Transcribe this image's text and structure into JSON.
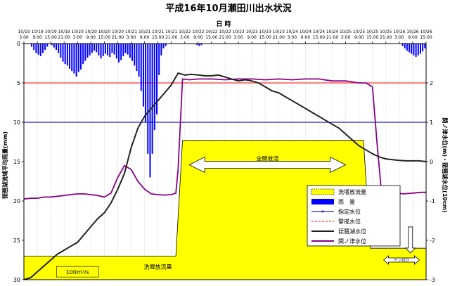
{
  "chart_data": {
    "type": "line",
    "title": "平成16年10月瀬田川出水状況",
    "xlabel": "日 時",
    "ylabel_left": "琵琶湖流域平均雨量(mm)",
    "ylabel_right": "関ノ津水位(m)・琵琶湖水位(10cm)",
    "x_tick_labels": [
      [
        "10/19",
        "3:00"
      ],
      [
        "10/19",
        "9:00"
      ],
      [
        "10/19",
        "15:00"
      ],
      [
        "10/19",
        "21:00"
      ],
      [
        "10/20",
        "3:00"
      ],
      [
        "10/20",
        "9:00"
      ],
      [
        "10/20",
        "15:00"
      ],
      [
        "10/20",
        "21:00"
      ],
      [
        "10/21",
        "3:00"
      ],
      [
        "10/21",
        "9:00"
      ],
      [
        "10/21",
        "15:00"
      ],
      [
        "10/21",
        "21:00"
      ],
      [
        "10/22",
        "3:00"
      ],
      [
        "10/22",
        "9:00"
      ],
      [
        "10/22",
        "15:00"
      ],
      [
        "10/22",
        "21:00"
      ],
      [
        "10/23",
        "3:00"
      ],
      [
        "10/23",
        "9:00"
      ],
      [
        "10/23",
        "15:00"
      ],
      [
        "10/23",
        "21:00"
      ],
      [
        "10/24",
        "3:00"
      ],
      [
        "10/24",
        "9:00"
      ],
      [
        "10/24",
        "15:00"
      ],
      [
        "10/24",
        "21:00"
      ],
      [
        "10/25",
        "3:00"
      ],
      [
        "10/25",
        "9:00"
      ],
      [
        "10/25",
        "15:00"
      ],
      [
        "10/25",
        "21:00"
      ],
      [
        "10/26",
        "3:00"
      ],
      [
        "10/26",
        "9:00"
      ],
      [
        "10/26",
        "15:00"
      ]
    ],
    "x_range_hours": [
      0,
      180
    ],
    "ylim_left": [
      30,
      0
    ],
    "left_ticks": [
      0,
      5,
      10,
      15,
      20,
      25,
      30
    ],
    "ylim_right": [
      -3,
      3
    ],
    "right_ticks": [
      2,
      1,
      0,
      -1,
      -2,
      -3
    ],
    "legend": {
      "position": "bottom-right",
      "entries": [
        "洗堰放流量",
        "雨　量",
        "指定水位",
        "警戒水位",
        "琵琶湖水位",
        "関ノ津水位"
      ]
    },
    "annotations": {
      "full_open": "全開放流",
      "discharge": "洗堰放流量",
      "base_flow": "100m³/s",
      "don_tsuke": "ドン付け"
    },
    "colors": {
      "discharge_fill": "#ffff00",
      "rain": "#0000ff",
      "designated_level": "#2020c0",
      "warning_level": "#ff3333",
      "biwa_level": "#222222",
      "sekinotsu_level": "#880088"
    },
    "series": [
      {
        "name": "雨　量",
        "unit": "mm",
        "x_hours": [
          0,
          1,
          2,
          3,
          4,
          5,
          6,
          7,
          8,
          9,
          10,
          11,
          12,
          13,
          14,
          15,
          16,
          17,
          18,
          19,
          20,
          21,
          22,
          23,
          24,
          25,
          26,
          27,
          28,
          29,
          30,
          31,
          32,
          33,
          34,
          35,
          36,
          37,
          38,
          39,
          40,
          41,
          42,
          43,
          44,
          45,
          46,
          47,
          48,
          49,
          50,
          51,
          52,
          53,
          54,
          55,
          56,
          57,
          58,
          59,
          60,
          61,
          62,
          63,
          64,
          65,
          66,
          67,
          68,
          69,
          70,
          71,
          72,
          73,
          74,
          75,
          76,
          77,
          78,
          79,
          80,
          81,
          82,
          83,
          84,
          85,
          86,
          87,
          88,
          89,
          90,
          91,
          92,
          93,
          94,
          95,
          96,
          97,
          98,
          99,
          100,
          101,
          102,
          103,
          104,
          105,
          106,
          107,
          108,
          109,
          110,
          111,
          112,
          113,
          114,
          115,
          116,
          117,
          118,
          119,
          120,
          121,
          122,
          123,
          124,
          125,
          126,
          127,
          128,
          129,
          130,
          131,
          132,
          133,
          134,
          135,
          136,
          137,
          138,
          139,
          140,
          141,
          142,
          143,
          144,
          145,
          146,
          147,
          148,
          149,
          150,
          151,
          152,
          153,
          154,
          155,
          156,
          157,
          158,
          159,
          160,
          161,
          162,
          163,
          164,
          165,
          166,
          167,
          168,
          169,
          170,
          171,
          172,
          173,
          174,
          175,
          176,
          177,
          178,
          179
        ],
        "values": [
          0,
          0,
          0,
          0.4,
          0.8,
          1.2,
          1.4,
          1.6,
          1.2,
          0.8,
          0.4,
          0,
          0.2,
          0.5,
          0.8,
          1.2,
          1.8,
          2.3,
          2.6,
          2.8,
          3.2,
          3.5,
          3.8,
          4.2,
          3.6,
          3.3,
          2.6,
          2.2,
          1.8,
          1.5,
          1.2,
          0.9,
          1.1,
          1.5,
          1.9,
          1.6,
          1.3,
          1.5,
          1.7,
          1.2,
          1.4,
          1.9,
          2.4,
          2.1,
          1.6,
          1.2,
          1.4,
          1.8,
          2.2,
          2.8,
          3.5,
          4.2,
          6,
          8,
          10,
          14,
          17,
          14,
          11,
          9,
          4,
          1.5,
          0.6,
          0.3,
          0,
          0,
          0,
          0,
          0,
          0,
          0,
          0,
          0,
          0,
          0,
          0,
          0,
          0.2,
          0.3,
          0.2,
          0,
          0,
          0,
          0,
          0,
          0,
          0,
          0,
          0,
          0,
          0,
          0,
          0,
          0,
          0,
          0,
          0,
          0,
          0,
          0,
          0,
          0,
          0,
          0,
          0,
          0,
          0,
          0,
          0,
          0,
          0,
          0,
          0,
          0,
          0,
          0,
          0,
          0,
          0,
          0,
          0,
          0,
          0,
          0,
          0,
          0,
          0,
          0,
          0,
          0,
          0,
          0,
          0,
          0,
          0,
          0,
          0,
          0,
          0,
          0,
          0,
          0,
          0,
          0,
          0,
          0,
          0,
          0,
          0,
          0,
          0,
          0,
          0,
          0,
          0,
          0,
          0,
          0,
          0,
          0,
          0,
          0,
          0,
          0,
          0,
          0,
          0,
          0,
          0,
          0.3,
          0.6,
          0.9,
          1.1,
          1.3,
          1.5,
          1.7,
          1.5,
          1.3,
          1,
          0.6
        ]
      },
      {
        "name": "琵琶湖水位",
        "unit": "10cm",
        "x_hours": [
          0,
          3,
          6,
          9,
          12,
          15,
          18,
          21,
          24,
          27,
          30,
          33,
          36,
          39,
          42,
          45,
          48,
          51,
          54,
          57,
          60,
          63,
          66,
          69,
          72,
          75,
          78,
          81,
          84,
          87,
          90,
          93,
          96,
          99,
          102,
          105,
          108,
          111,
          114,
          117,
          120,
          123,
          126,
          129,
          132,
          135,
          138,
          141,
          144,
          147,
          150,
          153,
          156,
          159,
          162,
          165,
          168,
          171,
          174,
          177,
          180
        ],
        "values": [
          -3,
          -2.95,
          -2.8,
          -2.65,
          -2.5,
          -2.35,
          -2.25,
          -2.15,
          -2.05,
          -1.85,
          -1.65,
          -1.45,
          -1.3,
          -1.05,
          -0.7,
          -0.3,
          0.35,
          0.85,
          1.15,
          1.35,
          1.55,
          1.75,
          1.95,
          2.25,
          2.2,
          2.22,
          2.2,
          2.18,
          2.18,
          2.2,
          2.15,
          2.1,
          2.05,
          2.08,
          2.05,
          2.0,
          1.9,
          1.8,
          1.75,
          1.65,
          1.55,
          1.45,
          1.35,
          1.25,
          1.15,
          1.05,
          0.95,
          0.85,
          0.7,
          0.55,
          0.4,
          0.3,
          0.2,
          0.12,
          0.07,
          0.05,
          0.03,
          0.02,
          0.02,
          0.02,
          0
        ]
      },
      {
        "name": "関ノ津水位",
        "unit": "m",
        "x_hours": [
          0,
          3,
          6,
          9,
          12,
          15,
          18,
          21,
          24,
          27,
          30,
          33,
          36,
          39,
          42,
          45,
          48,
          51,
          54,
          57,
          60,
          63,
          66,
          68,
          69,
          71,
          74,
          78,
          84,
          90,
          96,
          102,
          108,
          114,
          120,
          126,
          132,
          138,
          144,
          150,
          153,
          156,
          158,
          160,
          163,
          166,
          170,
          174,
          178,
          180
        ],
        "values": [
          -0.95,
          -0.93,
          -0.93,
          -0.9,
          -0.9,
          -0.88,
          -0.86,
          -0.84,
          -0.82,
          -0.82,
          -0.84,
          -0.86,
          -0.9,
          -0.8,
          -0.4,
          -0.1,
          -0.2,
          -0.5,
          -0.7,
          -0.82,
          -0.84,
          -0.85,
          -0.84,
          -0.8,
          -0.2,
          2.1,
          2.08,
          2.1,
          2.1,
          2.08,
          2.1,
          2.1,
          2.08,
          2.1,
          2.08,
          2.1,
          2.1,
          2.05,
          2.05,
          2.0,
          2.0,
          1.9,
          0.5,
          -0.75,
          -0.82,
          -0.8,
          -0.82,
          -0.8,
          -0.78,
          -0.78
        ]
      },
      {
        "name": "洗堰放流量",
        "x_hours": [
          0,
          66,
          68,
          71,
          150,
          152,
          155,
          180
        ],
        "values": [
          27,
          27,
          27,
          12.3,
          12.3,
          12.3,
          26,
          26
        ]
      },
      {
        "name": "警戒水位",
        "level": 2
      },
      {
        "name": "指定水位",
        "level": 1
      }
    ]
  }
}
